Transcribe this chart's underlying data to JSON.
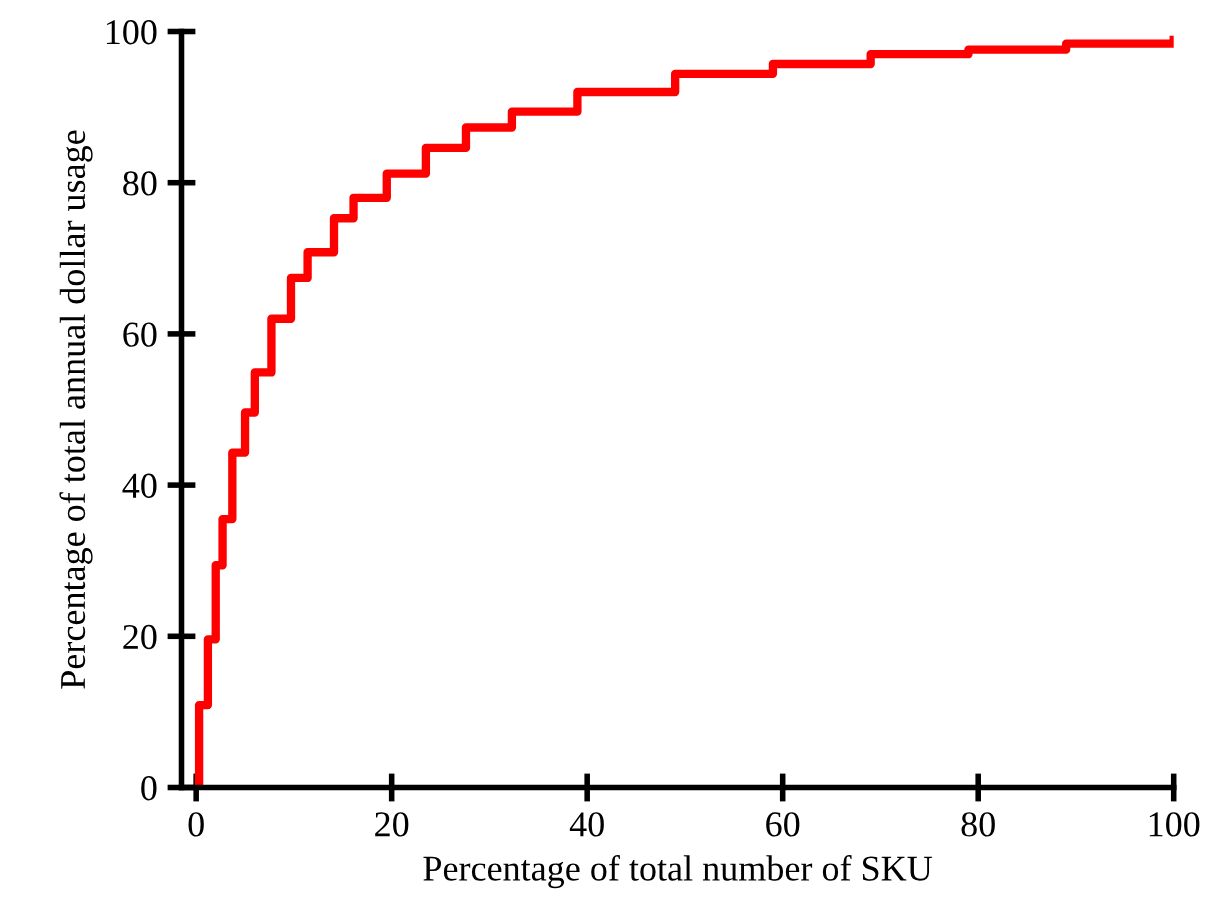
{
  "chart_data": {
    "type": "step",
    "xlabel": "Percentage of total number of SKU",
    "ylabel": "Percentage of total annual dollar usage",
    "x": [
      0.3,
      0.3,
      1.2,
      2,
      2.7,
      3.7,
      5,
      6,
      7.7,
      9.7,
      11.4,
      14.1,
      16.1,
      19.5,
      23.5,
      27.6,
      32.3,
      39,
      49,
      59,
      69,
      79,
      89,
      100
    ],
    "series": [
      {
        "color": "#ff0000",
        "values": [
          0,
          10.9,
          19.6,
          29.4,
          35.5,
          44.3,
          49.6,
          54.9,
          62,
          67.4,
          70.8,
          75.3,
          78,
          81.2,
          84.6,
          87.3,
          89.4,
          92,
          94.4,
          95.7,
          97,
          97.6,
          98.4,
          98.9
        ]
      }
    ],
    "xlim": [
      -1.5,
      100
    ],
    "ylim": [
      0,
      100
    ],
    "xticks": [
      0,
      20,
      40,
      60,
      80,
      100
    ],
    "yticks": [
      0,
      20,
      40,
      60,
      80,
      100
    ],
    "grid": false,
    "legend": false,
    "marker": "none",
    "line_style": "solid"
  }
}
